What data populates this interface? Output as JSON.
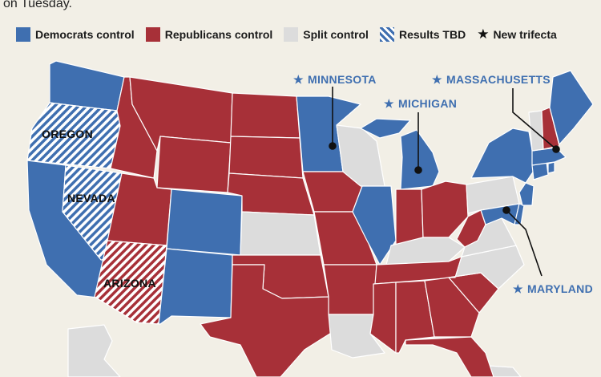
{
  "header": {
    "intro": "on Tuesday."
  },
  "legend": {
    "items": [
      {
        "label": "Democrats control",
        "color": "#3f6fb0",
        "pattern": "solid"
      },
      {
        "label": "Republicans control",
        "color": "#a73038",
        "pattern": "solid"
      },
      {
        "label": "Split control",
        "color": "#dcdcdc",
        "pattern": "solid"
      },
      {
        "label": "Results TBD",
        "color": "#3f6fb0",
        "pattern": "hatched"
      },
      {
        "label": "New trifecta",
        "icon": "star-icon"
      }
    ]
  },
  "colors": {
    "dem": "#3f6fb0",
    "rep": "#a73038",
    "split": "#dcdcdc",
    "tbd_dem": "#3f6fb0",
    "tbd_rep": "#a73038",
    "background": "#f2efe6"
  },
  "map": {
    "state_labels": {
      "oregon": "OREGON",
      "nevada": "NEVADA",
      "arizona": "ARIZONA"
    },
    "callouts": {
      "minnesota": "MINNESOTA",
      "michigan": "MICHIGAN",
      "massachusetts": "MASSACHUSETTS",
      "maryland": "MARYLAND"
    }
  }
}
